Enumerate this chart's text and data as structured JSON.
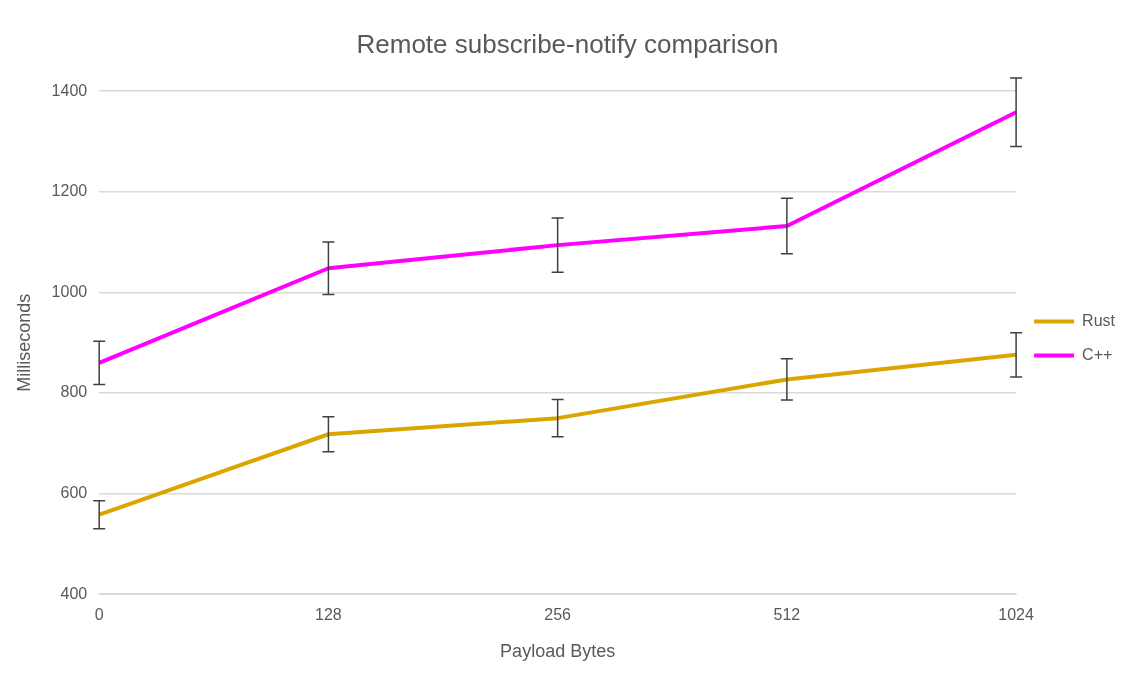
{
  "chart_data": {
    "type": "line",
    "title": "Remote subscribe-notify comparison",
    "xlabel": "Payload Bytes",
    "ylabel": "Milliseconds",
    "categories": [
      "0",
      "128",
      "256",
      "512",
      "1024"
    ],
    "series": [
      {
        "name": "Rust",
        "color": "#dba500",
        "values": [
          558,
          718,
          750,
          827,
          876
        ],
        "errors": [
          28,
          35,
          37,
          41,
          44
        ]
      },
      {
        "name": "C++",
        "color": "#ff00ff",
        "values": [
          860,
          1048,
          1094,
          1132,
          1358
        ],
        "errors": [
          43,
          52,
          54,
          55,
          68
        ]
      }
    ],
    "ylim": [
      400,
      1400
    ],
    "yticks": [
      400,
      600,
      800,
      1000,
      1200,
      1400
    ],
    "grid": "y",
    "legend": "right",
    "marker": "none",
    "line_style": "solid"
  }
}
